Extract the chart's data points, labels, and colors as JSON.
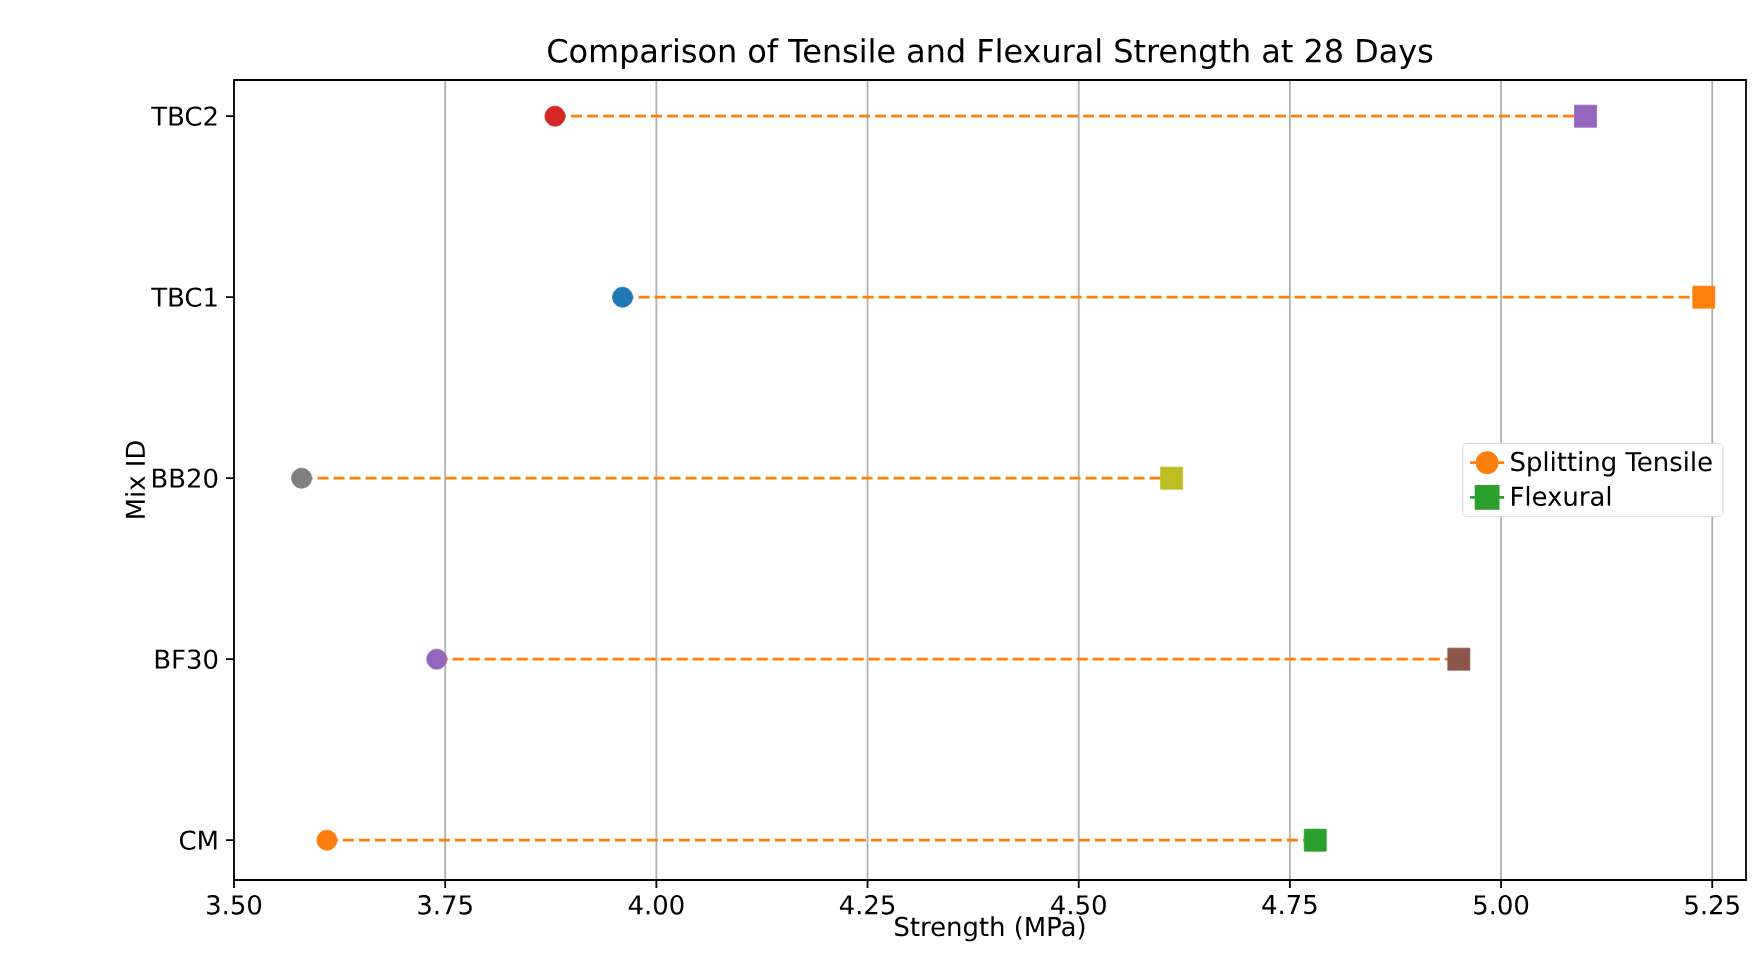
{
  "chart_data": {
    "type": "scatter",
    "orientation": "horizontal",
    "title": "Comparison of Tensile and Flexural Strength at 28 Days",
    "xlabel": "Strength (MPa)",
    "ylabel": "Mix ID",
    "categories": [
      "TBC2",
      "TBC1",
      "BB20",
      "BF30",
      "CM"
    ],
    "series": [
      {
        "name": "Splitting Tensile",
        "marker": "circle",
        "color": "#ff7f0e",
        "colors": [
          "#d62728",
          "#1f77b4",
          "#7f7f7f",
          "#9467bd",
          "#ff7f0e"
        ],
        "values": [
          3.88,
          3.96,
          3.58,
          3.74,
          3.61
        ],
        "line_style": "dashed"
      },
      {
        "name": "Flexural",
        "marker": "square",
        "color": "#2ca02c",
        "colors": [
          "#9467bd",
          "#ff7f0e",
          "#bcbd22",
          "#8c564b",
          "#2ca02c"
        ],
        "values": [
          5.1,
          5.24,
          4.61,
          4.95,
          4.78
        ]
      }
    ],
    "xlim": [
      3.5,
      5.29
    ],
    "xticks": [
      {
        "value": 3.5,
        "label": "3.50"
      },
      {
        "value": 3.75,
        "label": "3.75"
      },
      {
        "value": 4.0,
        "label": "4.00"
      },
      {
        "value": 4.25,
        "label": "4.25"
      },
      {
        "value": 4.5,
        "label": "4.50"
      },
      {
        "value": 4.75,
        "label": "4.75"
      },
      {
        "value": 5.0,
        "label": "5.00"
      },
      {
        "value": 5.25,
        "label": "5.25"
      }
    ],
    "grid": "x",
    "legend": "center right"
  }
}
